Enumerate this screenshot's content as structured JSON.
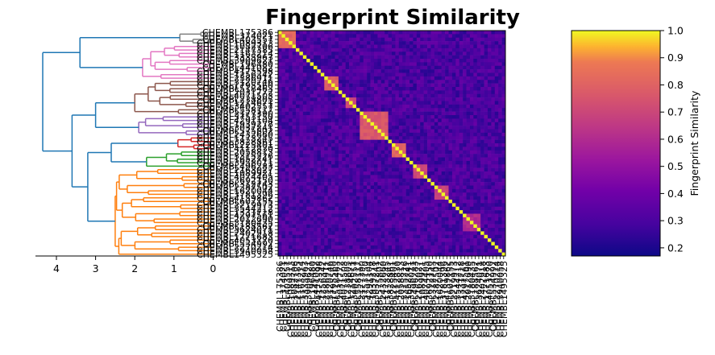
{
  "chart_data": {
    "type": "heatmap",
    "title": "Fingerprint Similarity",
    "colormap": "plasma",
    "colorbar": {
      "label": "Fingerprint Similarity",
      "vmin": 0.17,
      "vmax": 1.0,
      "ticks": [
        "0.2",
        "0.3",
        "0.4",
        "0.5",
        "0.6",
        "0.7",
        "0.8",
        "0.9",
        "1.0"
      ]
    },
    "heatmap": {
      "size": 64,
      "diagonal_value": 1.0,
      "background_value": 0.3,
      "blocks": [
        {
          "from": 0,
          "to": 4,
          "value": 0.82
        },
        {
          "from": 13,
          "to": 16,
          "value": 0.78
        },
        {
          "from": 19,
          "to": 21,
          "value": 0.72
        },
        {
          "from": 23,
          "to": 30,
          "value": 0.76
        },
        {
          "from": 32,
          "to": 35,
          "value": 0.8
        },
        {
          "from": 38,
          "to": 41,
          "value": 0.72
        },
        {
          "from": 44,
          "to": 47,
          "value": 0.68
        },
        {
          "from": 52,
          "to": 56,
          "value": 0.6
        }
      ]
    },
    "dendrogram": {
      "axis_ticks": [
        "4",
        "3",
        "2",
        "1",
        "0"
      ],
      "xlim": [
        4.5,
        0
      ],
      "clusters": [
        {
          "color": "#7f7f7f",
          "leaves": 4
        },
        {
          "color": "#e377c2",
          "leaves": 10
        },
        {
          "color": "#8c564b",
          "leaves": 10
        },
        {
          "color": "#9467bd",
          "leaves": 6
        },
        {
          "color": "#d62728",
          "leaves": 4
        },
        {
          "color": "#2ca02c",
          "leaves": 5
        },
        {
          "color": "#ff7f0e",
          "leaves": 25
        }
      ],
      "link_color": "#1f77b4",
      "cluster_merge_heights": [
        0.85,
        1.8,
        2.0,
        1.9,
        0.9,
        1.7,
        2.5
      ],
      "top_links": [
        {
          "join": [
            0,
            1
          ],
          "height": 3.4
        },
        {
          "join": [
            2,
            3
          ],
          "height": 3.0
        },
        {
          "join": [
            4,
            5
          ],
          "height": 2.6
        },
        {
          "join": [
            "A45",
            6
          ],
          "height": 3.2
        },
        {
          "join": [
            "A23",
            "A456"
          ],
          "height": 3.6
        },
        {
          "join": [
            "A01",
            "A23456"
          ],
          "height": 4.35
        }
      ]
    },
    "leaf_labels": [
      "CHEMBL175386",
      "CHEMBL374021",
      "CHEMBL403557",
      "CHEMBL1089313",
      "CHEMBL1082706",
      "CHEMBL2147385",
      "CHEMBL1163214",
      "CHEMBL3335963",
      "CHEMBL3909621",
      "CHEMBL196480",
      "CHEMBL441082",
      "CHEMBL4175598",
      "CHEMBL1256342",
      "CHEMBL2386911",
      "CHEMBL3120746",
      "CHEMBL1795560",
      "CHEMBL518463",
      "CHEMBL2031772",
      "CHEMBL4071503",
      "CHEMBL238805",
      "CHEMBL1214671",
      "CHEMBL3402557",
      "CHEMBL558117",
      "CHEMBL2177390",
      "CHEMBL3753150",
      "CHEMBL4291104",
      "CHEMBL1939278",
      "CHEMBL3037241",
      "CHEMBL575802",
      "CHEMBL2432660",
      "CHEMBL1173245",
      "CHEMBL3828861",
      "CHEMBL225401",
      "CHEMBL4112830",
      "CHEMBL2058813",
      "CHEMBL3315226",
      "CHEMBL1652741",
      "CHEMBL3958011",
      "CHEMBL496283",
      "CHEMBL2163027",
      "CHEMBL1089921",
      "CHEMBL4074405",
      "CHEMBL3692150",
      "CHEMBL312743",
      "CHEMBL2387502",
      "CHEMBL1620044",
      "CHEMBL3781396",
      "CHEMBL4159862",
      "CHEMBL607155",
      "CHEMBL2219973",
      "CHEMBL3544212",
      "CHEMBL1331718",
      "CHEMBL4297561",
      "CHEMBL2012690",
      "CHEMBL3180435",
      "CHEMBL188562",
      "CHEMBL3624071",
      "CHEMBL2402918",
      "CHEMBL1771683",
      "CHEMBL4053770",
      "CHEMBL534992",
      "CHEMBL2270214",
      "CHEMBL3940058",
      "CHEMBL1495325"
    ]
  }
}
